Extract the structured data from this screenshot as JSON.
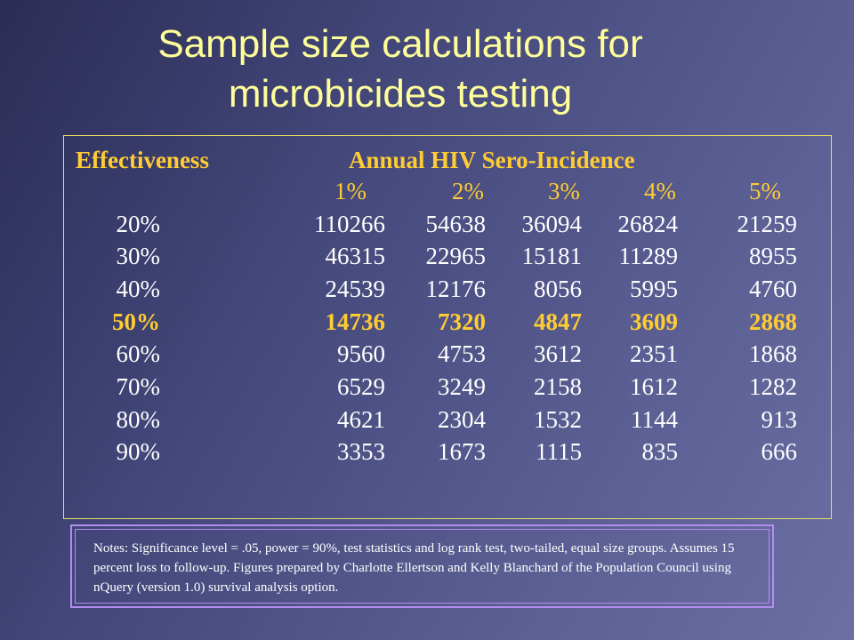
{
  "title": {
    "line1": "Sample size calculations for",
    "line2": "microbicides testing"
  },
  "table": {
    "effectiveness_header": "Effectiveness",
    "incidence_header": "Annual HIV Sero-Incidence",
    "incidence_levels": [
      "1%",
      "2%",
      "3%",
      "4%",
      "5%"
    ],
    "rows": [
      {
        "effectiveness": "20%",
        "values": [
          "110266",
          "54638",
          "36094",
          "26824",
          "21259"
        ]
      },
      {
        "effectiveness": "30%",
        "values": [
          "46315",
          "22965",
          "15181",
          "11289",
          "8955"
        ]
      },
      {
        "effectiveness": "40%",
        "values": [
          "24539",
          "12176",
          "8056",
          "5995",
          "4760"
        ]
      },
      {
        "effectiveness": "50%",
        "values": [
          "14736",
          "7320",
          "4847",
          "3609",
          "2868"
        ]
      },
      {
        "effectiveness": "60%",
        "values": [
          "9560",
          "4753",
          "3612",
          "2351",
          "1868"
        ]
      },
      {
        "effectiveness": "70%",
        "values": [
          "6529",
          "3249",
          "2158",
          "1612",
          "1282"
        ]
      },
      {
        "effectiveness": "80%",
        "values": [
          "4621",
          "2304",
          "1532",
          "1144",
          "913"
        ]
      },
      {
        "effectiveness": "90%",
        "values": [
          "3353",
          "1673",
          "1115",
          "835",
          "666"
        ]
      }
    ]
  },
  "notes": "Notes:  Significance level = .05, power = 90%, test statistics and log rank test, two-tailed, equal size groups.  Assumes 15 percent loss to follow-up.  Figures prepared by Charlotte Ellertson and Kelly Blanchard of the Population Council using nQuery (version 1.0) survival analysis option.",
  "colors": {
    "title": "#ffff99",
    "header": "#ffcc33",
    "highlight_row": "#ffcc33",
    "body_text": "#ffffff",
    "table_border": "#e8e060",
    "notes_border": "#b48cf0"
  }
}
